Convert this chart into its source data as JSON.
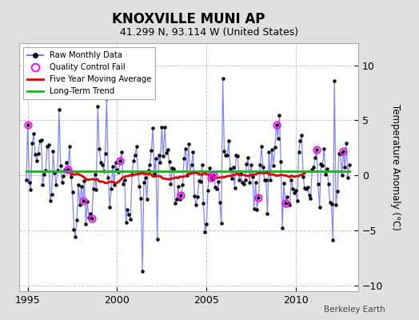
{
  "title": "KNOXVILLE MUNI AP",
  "subtitle": "41.299 N, 93.114 W (United States)",
  "ylabel": "Temperature Anomaly (°C)",
  "credit": "Berkeley Earth",
  "ylim": [
    -10.5,
    12
  ],
  "xlim": [
    1994.5,
    2013.5
  ],
  "xticks": [
    1995,
    2000,
    2005,
    2010
  ],
  "yticks": [
    -10,
    -5,
    0,
    5,
    10
  ],
  "background_color": "#e0e0e0",
  "plot_background": "#ffffff",
  "grid_color": "#c8c8c8",
  "raw_line_color": "#7777ff",
  "raw_marker_color": "#000000",
  "moving_avg_color": "#dd0000",
  "trend_color": "#00cc00",
  "qc_fail_color": "#ff00ff",
  "long_term_trend_value": 0.42,
  "seed": 12345
}
